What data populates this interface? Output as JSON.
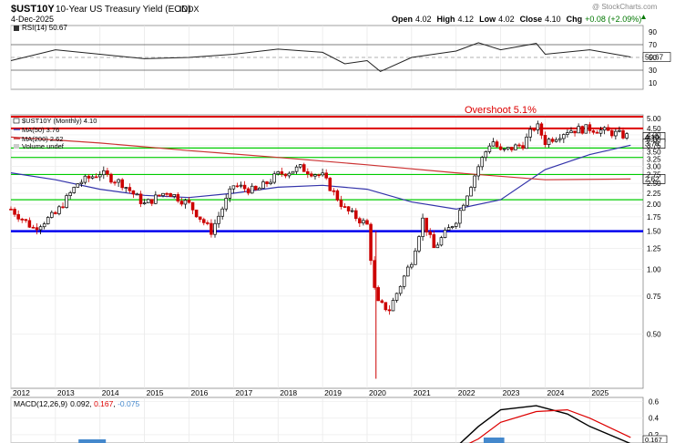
{
  "header": {
    "symbol": "$UST10Y",
    "name": "10-Year US Treasury Yield (EOD)",
    "exchange": "INDX",
    "date": "4-Dec-2025",
    "copyright": "@ StockCharts.com",
    "open_label": "Open",
    "open": "4.02",
    "high_label": "High",
    "high": "4.12",
    "low_label": "Low",
    "low": "4.02",
    "close_label": "Close",
    "close": "4.10",
    "chg_label": "Chg",
    "chg": "+0.08 (+2.09%)",
    "chg_arrow": "triangle-up-icon"
  },
  "rsi_panel": {
    "label": "RSI(14) 50.67",
    "ticks": [
      "90",
      "70",
      "50",
      "30",
      "10"
    ],
    "last_badge": "50.67",
    "levels": [
      70,
      50,
      30
    ]
  },
  "price_panel": {
    "legend": [
      "$UST10Y (Monthly) 4.10",
      "MA(50) 3.76",
      "MA(200) 2.62",
      "Volume undef"
    ],
    "annotation": "Overshoot 5.1%",
    "y_ticks": [
      "5.00",
      "4.50",
      "4.20",
      "4.00",
      "3.75",
      "3.50",
      "3.25",
      "3.00",
      "2.75",
      "2.50",
      "2.25",
      "2.00",
      "1.75",
      "1.50",
      "1.25",
      "1.00",
      "0.75",
      "0.50"
    ],
    "badges": {
      "close": "4.10",
      "ma50": "3.76",
      "ma200": "2.62"
    },
    "x_labels": [
      "2012",
      "2013",
      "2014",
      "2015",
      "2016",
      "2017",
      "2018",
      "2019",
      "2020",
      "2021",
      "2022",
      "2023",
      "2024",
      "2025"
    ]
  },
  "macd_panel": {
    "label_prefix": "MACD(12,26,9)",
    "macd": "0.092",
    "signal": "0.167",
    "hist": "-0.075",
    "ticks": [
      "0.6",
      "0.4",
      "0.2"
    ],
    "badge": "0.167"
  },
  "colors": {
    "up_candle": "#ffffff",
    "down_candle": "#cc0000",
    "ma50": "#3333aa",
    "ma200": "#cc3333",
    "red_line": "#dd0000",
    "green_line": "#00cc00",
    "blue_line": "#0000ee",
    "rsi_fill_high": "#2e8b57",
    "rsi_fill_low": "#c04040",
    "macd_line": "#000000",
    "macd_signal": "#dd0000",
    "macd_hist": "#4488cc"
  },
  "chart_data": {
    "type": "line",
    "scale": "log",
    "series": [
      {
        "name": "$UST10Y (Monthly)",
        "x": [
          2012.0,
          2012.5,
          2013.0,
          2013.5,
          2014.0,
          2014.5,
          2015.0,
          2015.5,
          2016.0,
          2016.5,
          2017.0,
          2017.5,
          2018.0,
          2018.5,
          2019.0,
          2019.5,
          2020.0,
          2020.2,
          2020.5,
          2021.0,
          2021.25,
          2021.5,
          2022.0,
          2022.5,
          2022.8,
          2023.0,
          2023.5,
          2023.8,
          2024.0,
          2024.5,
          2025.0,
          2025.5,
          2025.92
        ],
        "values": [
          1.9,
          1.55,
          1.8,
          2.5,
          2.8,
          2.5,
          2.0,
          2.3,
          2.0,
          1.5,
          2.45,
          2.3,
          2.75,
          2.95,
          2.7,
          1.9,
          1.6,
          0.7,
          0.65,
          1.1,
          1.7,
          1.25,
          1.7,
          3.0,
          4.0,
          3.5,
          3.8,
          4.7,
          3.9,
          4.4,
          4.5,
          4.3,
          4.1
        ]
      },
      {
        "name": "MA(50)",
        "x": [
          2012.0,
          2013.0,
          2014.0,
          2015.0,
          2016.0,
          2017.0,
          2018.0,
          2019.0,
          2020.0,
          2021.0,
          2022.0,
          2023.0,
          2024.0,
          2025.0,
          2025.92
        ],
        "values": [
          2.8,
          2.6,
          2.35,
          2.2,
          2.15,
          2.25,
          2.4,
          2.45,
          2.35,
          2.05,
          1.9,
          2.1,
          2.9,
          3.4,
          3.76
        ]
      },
      {
        "name": "MA(200)",
        "x": [
          2012.0,
          2014.0,
          2016.0,
          2018.0,
          2020.0,
          2022.0,
          2024.0,
          2025.92
        ],
        "values": [
          4.1,
          3.85,
          3.55,
          3.3,
          3.05,
          2.8,
          2.6,
          2.62
        ]
      }
    ],
    "horizontal_lines": [
      5.1,
      4.5,
      3.65,
      3.3,
      2.75,
      2.1,
      1.5
    ],
    "ylim": [
      0.28,
      5.2
    ],
    "xlim": [
      2012.0,
      2026.2
    ],
    "rsi_values": {
      "x": [
        2012.0,
        2013.0,
        2014.0,
        2015.0,
        2016.0,
        2017.0,
        2018.0,
        2019.0,
        2019.5,
        2020.0,
        2020.3,
        2021.0,
        2022.0,
        2022.5,
        2023.0,
        2023.8,
        2024.0,
        2025.0,
        2025.92
      ],
      "values": [
        45,
        62,
        55,
        48,
        50,
        55,
        63,
        58,
        40,
        45,
        28,
        50,
        60,
        73,
        62,
        72,
        55,
        62,
        50.67
      ]
    },
    "macd_values": {
      "x": [
        2022.0,
        2022.5,
        2023.0,
        2023.8,
        2024.5,
        2025.0,
        2025.92
      ],
      "macd": [
        0.05,
        0.3,
        0.5,
        0.55,
        0.45,
        0.3,
        0.092
      ],
      "signal": [
        0.02,
        0.15,
        0.35,
        0.48,
        0.5,
        0.4,
        0.167
      ]
    }
  }
}
